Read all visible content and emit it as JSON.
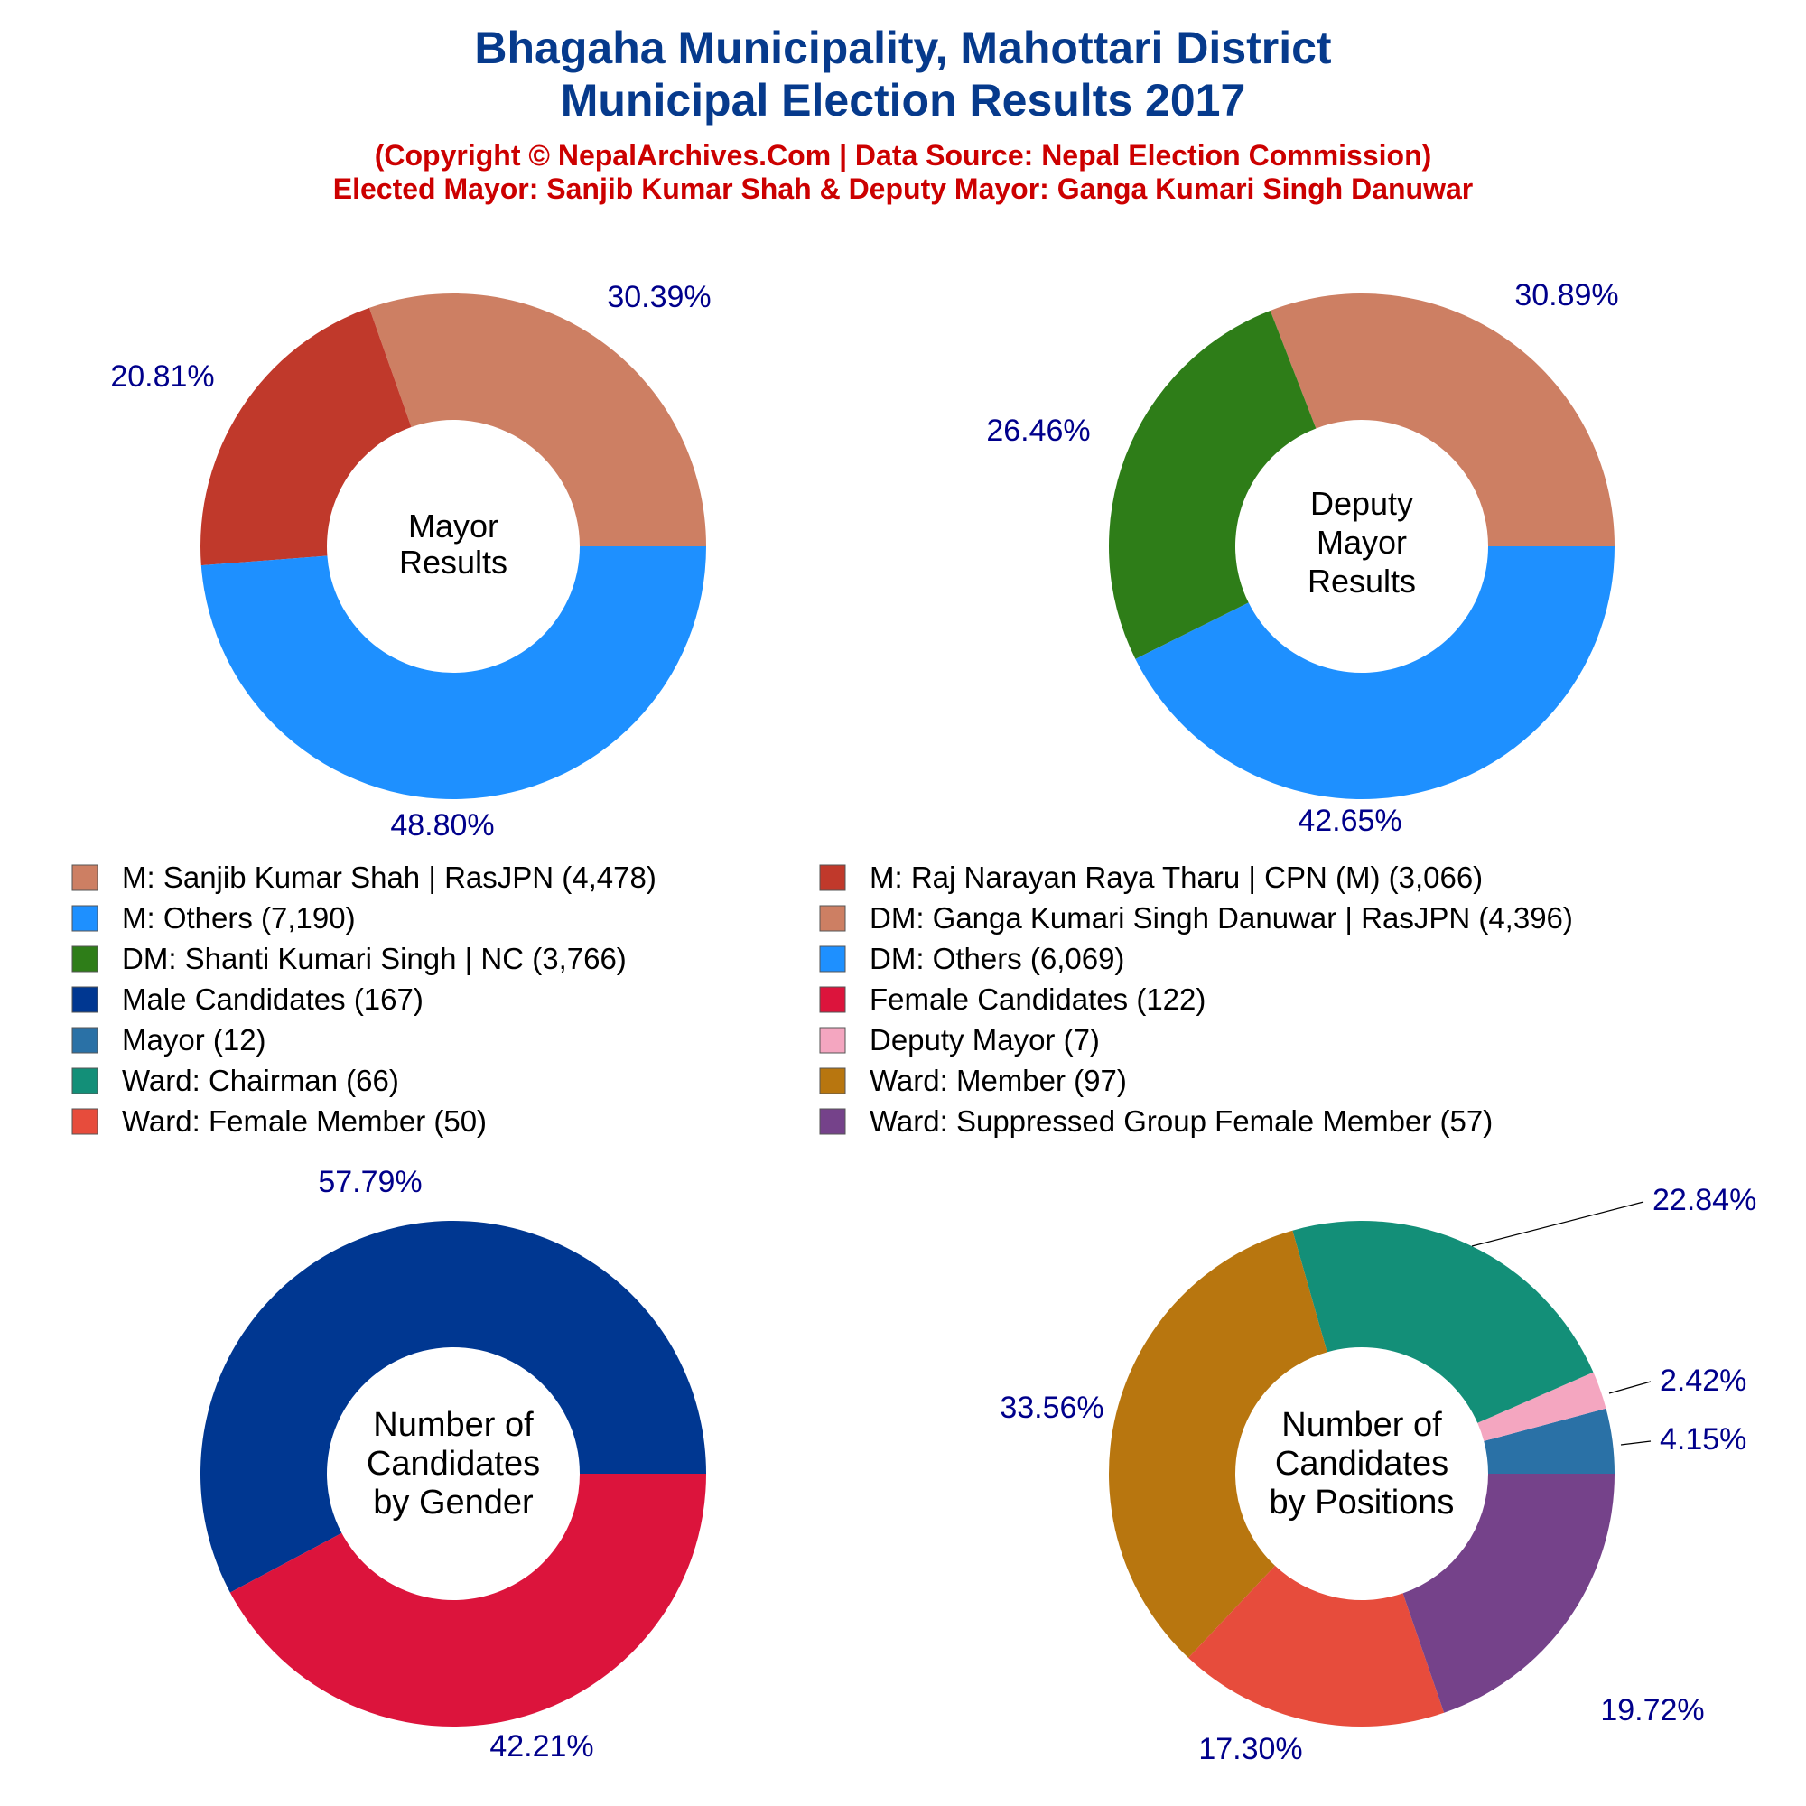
{
  "header": {
    "title_line1": "Bhagaha Municipality, Mahottari District",
    "title_line2": "Municipal Election Results 2017",
    "subtitle_line1": "(Copyright © NepalArchives.Com | Data Source: Nepal Election Commission)",
    "subtitle_line2": "Elected Mayor: Sanjib Kumar Shah & Deputy Mayor: Ganga Kumari Singh Danuwar"
  },
  "colors": {
    "title": "#063A8C",
    "subtitle": "#CC0000",
    "pct_label": "#00008B",
    "center_text": "#000000"
  },
  "legend": [
    {
      "label": "M: Sanjib Kumar Shah | RasJPN (4,478)",
      "color": "#CD7F63"
    },
    {
      "label": "M: Raj Narayan Raya Tharu | CPN (M) (3,066)",
      "color": "#C0392B"
    },
    {
      "label": "M: Others (7,190)",
      "color": "#1E90FF"
    },
    {
      "label": "DM: Ganga Kumari Singh Danuwar | RasJPN (4,396)",
      "color": "#CD7F63"
    },
    {
      "label": "DM: Shanti Kumari Singh | NC (3,766)",
      "color": "#2E7D18"
    },
    {
      "label": "DM: Others (6,069)",
      "color": "#1E90FF"
    },
    {
      "label": "Male Candidates (167)",
      "color": "#003791"
    },
    {
      "label": "Female Candidates (122)",
      "color": "#DC143C"
    },
    {
      "label": "Mayor (12)",
      "color": "#2A71A6"
    },
    {
      "label": "Deputy Mayor (7)",
      "color": "#F4A6C0"
    },
    {
      "label": "Ward: Chairman (66)",
      "color": "#138F78"
    },
    {
      "label": "Ward: Member (97)",
      "color": "#B8760F"
    },
    {
      "label": "Ward: Female Member (50)",
      "color": "#E74C3C"
    },
    {
      "label": "Ward: Suppressed Group Female Member (57)",
      "color": "#75428A"
    }
  ],
  "chart_data": [
    {
      "type": "pie",
      "center_label": [
        "Mayor",
        "Results"
      ],
      "slices": [
        {
          "name": "M: Sanjib Kumar Shah | RasJPN",
          "value": 4478,
          "pct_label": "30.39%",
          "color": "#CD7F63"
        },
        {
          "name": "M: Raj Narayan Raya Tharu | CPN (M)",
          "value": 3066,
          "pct_label": "20.81%",
          "color": "#C0392B"
        },
        {
          "name": "M: Others",
          "value": 7190,
          "pct_label": "48.80%",
          "color": "#1E90FF"
        }
      ]
    },
    {
      "type": "pie",
      "center_label": [
        "Deputy",
        "Mayor",
        "Results"
      ],
      "slices": [
        {
          "name": "DM: Ganga Kumari Singh Danuwar | RasJPN",
          "value": 4396,
          "pct_label": "30.89%",
          "color": "#CD7F63"
        },
        {
          "name": "DM: Shanti Kumari Singh | NC",
          "value": 3766,
          "pct_label": "26.46%",
          "color": "#2E7D18"
        },
        {
          "name": "DM: Others",
          "value": 6069,
          "pct_label": "42.65%",
          "color": "#1E90FF"
        }
      ]
    },
    {
      "type": "pie",
      "center_label": [
        "Number of",
        "Candidates",
        "by Gender"
      ],
      "slices": [
        {
          "name": "Male Candidates",
          "value": 167,
          "pct_label": "57.79%",
          "color": "#003791"
        },
        {
          "name": "Female Candidates",
          "value": 122,
          "pct_label": "42.21%",
          "color": "#DC143C"
        }
      ]
    },
    {
      "type": "pie",
      "center_label": [
        "Number of",
        "Candidates",
        "by Positions"
      ],
      "slices": [
        {
          "name": "Mayor",
          "value": 12,
          "pct_label": "4.15%",
          "color": "#2A71A6"
        },
        {
          "name": "Deputy Mayor",
          "value": 7,
          "pct_label": "2.42%",
          "color": "#F4A6C0"
        },
        {
          "name": "Ward: Chairman",
          "value": 66,
          "pct_label": "22.84%",
          "color": "#138F78"
        },
        {
          "name": "Ward: Member",
          "value": 97,
          "pct_label": "33.56%",
          "color": "#B8760F"
        },
        {
          "name": "Ward: Female Member",
          "value": 50,
          "pct_label": "17.30%",
          "color": "#E74C3C"
        },
        {
          "name": "Ward: Suppressed Group Female Member",
          "value": 57,
          "pct_label": "19.72%",
          "color": "#75428A"
        }
      ]
    }
  ]
}
